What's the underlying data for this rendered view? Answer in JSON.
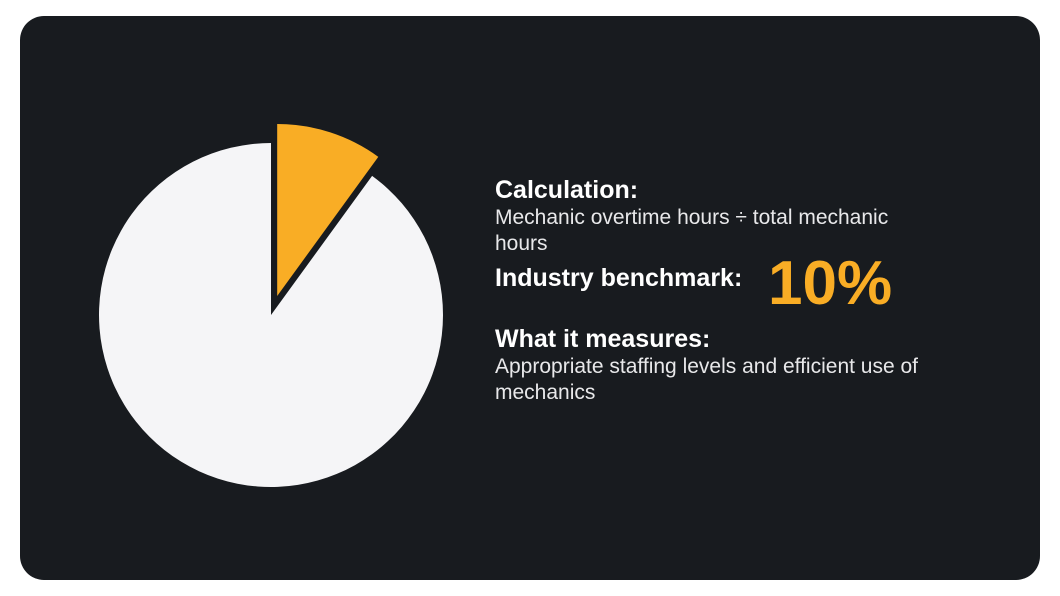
{
  "chart_data": {
    "type": "pie",
    "values": [
      10,
      90
    ],
    "colors": [
      "#f9ad25",
      "#f5f5f7"
    ],
    "explode": [
      20,
      0
    ]
  },
  "calculation": {
    "heading": "Calculation:",
    "text": "Mechanic overtime hours ÷ total mechanic hours"
  },
  "benchmark": {
    "heading": "Industry benchmark:",
    "value": "10%"
  },
  "measures": {
    "heading": "What it measures:",
    "text": "Appropriate staffing levels and efficient use of mechanics"
  }
}
